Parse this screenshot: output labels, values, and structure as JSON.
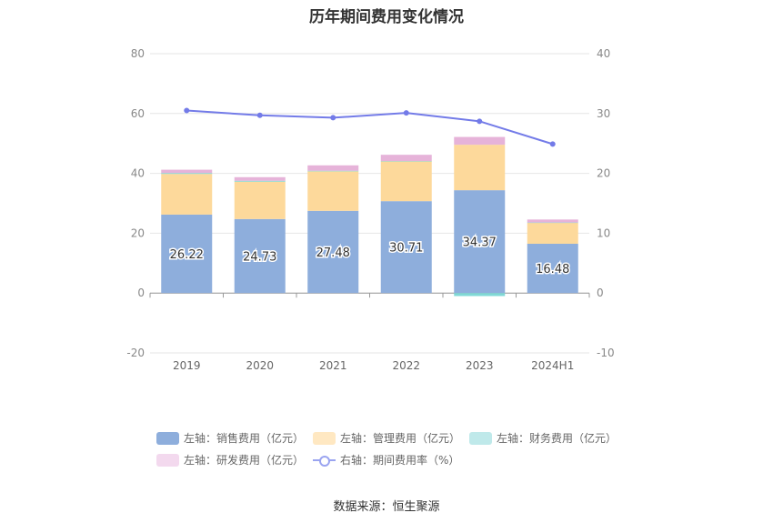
{
  "chart_data": {
    "type": "bar",
    "title": "历年期间费用变化情况",
    "categories": [
      "2019",
      "2020",
      "2021",
      "2022",
      "2023",
      "2024H1"
    ],
    "y_left": {
      "min": -20,
      "max": 80,
      "ticks": [
        "-20",
        "0",
        "20",
        "40",
        "60",
        "80"
      ]
    },
    "y_right": {
      "min": -10,
      "max": 40,
      "ticks": [
        "-10",
        "0",
        "10",
        "20",
        "30",
        "40"
      ]
    },
    "series": [
      {
        "name": "左轴：销售费用（亿元）",
        "kind": "bar",
        "axis": "left",
        "color": "#8eaedc",
        "values": [
          26.22,
          24.73,
          27.48,
          30.71,
          34.37,
          16.48
        ],
        "labels": [
          "26.22",
          "24.73",
          "27.48",
          "30.71",
          "34.37",
          "16.48"
        ]
      },
      {
        "name": "左轴：管理费用（亿元）",
        "kind": "bar",
        "axis": "left",
        "color": "#fdd99b",
        "values": [
          13.6,
          12.5,
          13.2,
          13.3,
          15.2,
          7.0
        ]
      },
      {
        "name": "左轴：财务费用（亿元）",
        "kind": "bar",
        "axis": "left",
        "color": "#80d8d6",
        "values": [
          0.3,
          0.3,
          0.2,
          0.1,
          -1.0,
          0.1
        ]
      },
      {
        "name": "左轴：研发费用（亿元）",
        "kind": "bar",
        "axis": "left",
        "color": "#e6b3d9",
        "values": [
          1.1,
          1.2,
          1.8,
          2.1,
          2.6,
          1.0
        ]
      },
      {
        "name": "右轴：期间费用率（%）",
        "kind": "line",
        "axis": "right",
        "color": "#737be8",
        "values": [
          30.5,
          29.7,
          29.3,
          30.1,
          28.7,
          24.9
        ]
      }
    ],
    "legend_position": "bottom",
    "grid": true
  },
  "legend": [
    {
      "label": "左轴：销售费用（亿元）",
      "color": "#8eaedc",
      "kind": "bar"
    },
    {
      "label": "左轴：管理费用（亿元）",
      "color": "#ffe8c2",
      "kind": "bar"
    },
    {
      "label": "左轴：财务费用（亿元）",
      "color": "#bfe9ea",
      "kind": "bar"
    },
    {
      "label": "左轴：研发费用（亿元）",
      "color": "#f3d9ee",
      "kind": "bar"
    },
    {
      "label": "右轴：期间费用率（%）",
      "color": "#9aa4f0",
      "kind": "line"
    }
  ],
  "source": "数据来源：恒生聚源"
}
